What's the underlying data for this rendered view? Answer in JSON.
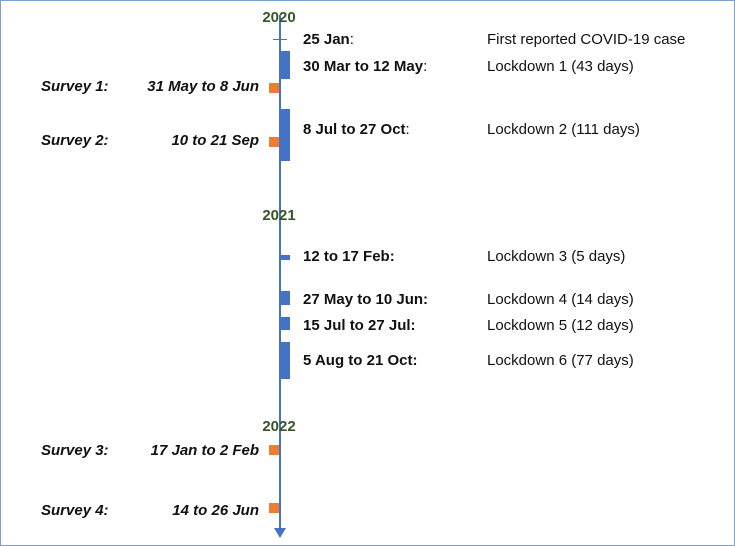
{
  "colors": {
    "axis": "#4472c4",
    "lockdown_bar": "#4472c4",
    "survey_marker": "#ed7d31",
    "year_text": "#375623",
    "text": "#111111"
  },
  "years": [
    "2020",
    "2021",
    "2022"
  ],
  "events": [
    {
      "date": "25 Jan",
      "suffix": ":",
      "desc": "First reported COVID-19 case"
    },
    {
      "date": "30 Mar to 12 May",
      "suffix": ":",
      "desc": "Lockdown 1 (43 days)"
    },
    {
      "date": "8 Jul to 27 Oct",
      "suffix": ":",
      "desc": "Lockdown 2 (111 days)"
    },
    {
      "date": "12 to 17 Feb:",
      "suffix": "",
      "desc": "Lockdown 3 (5 days)"
    },
    {
      "date": "27 May to 10 Jun:",
      "suffix": "",
      "desc": "Lockdown 4 (14 days)"
    },
    {
      "date": "15 Jul to 27 Jul:",
      "suffix": "",
      "desc": "Lockdown 5 (12 days)"
    },
    {
      "date": "5 Aug to 21 Oct:",
      "suffix": "",
      "desc": "Lockdown 6 (77 days)"
    }
  ],
  "surveys": [
    {
      "name": "Survey 1:",
      "dates": "31 May to 8 Jun"
    },
    {
      "name": "Survey 2:",
      "dates": "10 to 21 Sep"
    },
    {
      "name": "Survey 3:",
      "dates": "17 Jan to 2 Feb"
    },
    {
      "name": "Survey 4:",
      "dates": "14 to 26 Jun"
    }
  ]
}
